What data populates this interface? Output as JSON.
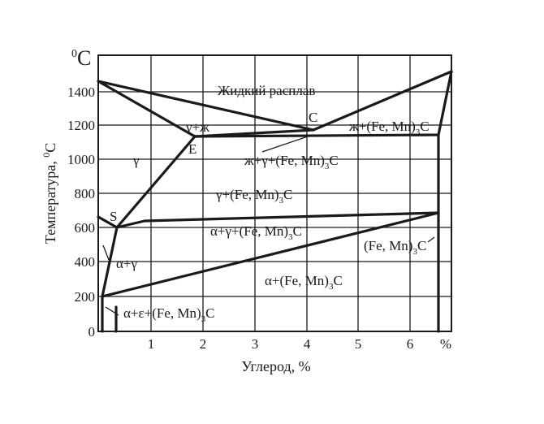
{
  "axes": {
    "y_unit": "°C",
    "y_unit_sup": "0",
    "y_unit_main": "C",
    "y_label": "Температура, °C",
    "y_label_main": "Температура, ",
    "y_label_sup": "0",
    "y_label_end": "C",
    "x_label": "Углерод, %",
    "x_unit": "%",
    "y_ticks": [
      "0",
      "200",
      "400",
      "600",
      "800",
      "1000",
      "1200",
      "1400"
    ],
    "x_ticks": [
      "1",
      "2",
      "3",
      "4",
      "5",
      "6"
    ]
  },
  "points": {
    "C": "C",
    "E": "E",
    "S": "S"
  },
  "regions": {
    "liquid": "Жидкий расплав",
    "gamma_liquid": "γ+ж",
    "liquid_carbide": "ж+(Fe, Mn)₃C",
    "liquid_gamma_carbide": "ж+γ+(Fe, Mn)₃C",
    "gamma": "γ",
    "gamma_carbide": "γ+(Fe, Mn)₃C",
    "alpha_gamma_carbide": "α+γ+(Fe, Mn)₃C",
    "carbide": "(Fe, Mn)₃C",
    "alpha_gamma": "α+γ",
    "alpha_carbide": "α+(Fe, Mn)₃C",
    "alpha_eps_carbide": "α+ε+(Fe, Mn)₃C"
  },
  "region_parts": {
    "liquid_carbide": {
      "a": "ж+(Fe, Mn)",
      "sub": "3",
      "b": "C"
    },
    "liquid_gamma_carbide": {
      "a": "ж+γ+(Fe, Mn)",
      "sub": "3",
      "b": "C"
    },
    "gamma_carbide": {
      "a": "γ+(Fe, Mn)",
      "sub": "3",
      "b": "C"
    },
    "alpha_gamma_carbide": {
      "a": "α+γ+(Fe, Mn)",
      "sub": "3",
      "b": "C"
    },
    "carbide": {
      "a": "(Fe, Mn)",
      "sub": "3",
      "b": "C"
    },
    "alpha_carbide": {
      "a": "α+(Fe, Mn)",
      "sub": "3",
      "b": "C"
    },
    "alpha_eps_carbide": {
      "a": "α+ε+(Fe, Mn)",
      "sub": "3",
      "b": "C"
    }
  }
}
